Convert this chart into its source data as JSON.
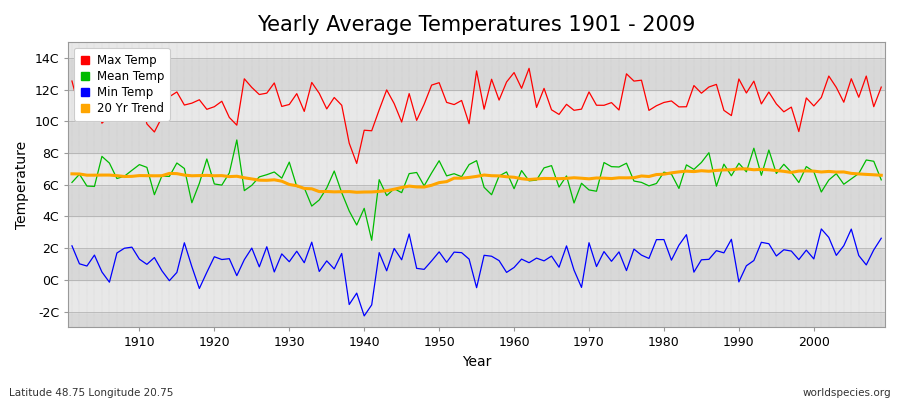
{
  "title": "Yearly Average Temperatures 1901 - 2009",
  "xlabel": "Year",
  "ylabel": "Temperature",
  "start_year": 1901,
  "end_year": 2009,
  "ylim": [
    -3,
    15
  ],
  "yticks": [
    -2,
    0,
    2,
    4,
    6,
    8,
    10,
    12,
    14
  ],
  "ytick_labels": [
    "-2C",
    "0C",
    "2C",
    "4C",
    "6C",
    "8C",
    "10C",
    "12C",
    "14C"
  ],
  "max_temp_color": "#ff0000",
  "mean_temp_color": "#00bb00",
  "min_temp_color": "#0000ff",
  "trend_color": "#ffa500",
  "plot_bg_color": "#e8e8e8",
  "band_light": "#e0e0e0",
  "band_dark": "#d0d0d0",
  "legend_labels": [
    "Max Temp",
    "Mean Temp",
    "Min Temp",
    "20 Yr Trend"
  ],
  "footer_left": "Latitude 48.75 Longitude 20.75",
  "footer_right": "worldspecies.org",
  "title_fontsize": 15,
  "axis_fontsize": 10,
  "seed": 12345,
  "max_temp_base": 11.2,
  "mean_temp_base": 6.3,
  "min_temp_base": 1.2,
  "max_temp_noise": 0.85,
  "mean_temp_noise": 0.75,
  "min_temp_noise": 0.75,
  "trend_amount": 0.9
}
